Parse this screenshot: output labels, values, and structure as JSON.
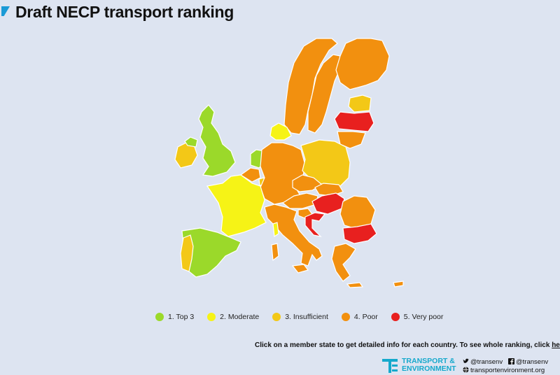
{
  "header": {
    "title": "Draft NECP transport ranking"
  },
  "colors": {
    "background": "#dde4f1",
    "top3": "#9bd92a",
    "moderate": "#f6f316",
    "insufficient": "#f3c817",
    "poor": "#f2900f",
    "very_poor": "#e8201f",
    "accent": "#1a9ad6"
  },
  "legend": {
    "items": [
      {
        "label": "1. Top 3",
        "category": "top3"
      },
      {
        "label": "2. Moderate",
        "category": "moderate"
      },
      {
        "label": "3. Insufficient",
        "category": "insufficient"
      },
      {
        "label": "4. Poor",
        "category": "poor"
      },
      {
        "label": "5. Very poor",
        "category": "very_poor"
      }
    ]
  },
  "map": {
    "regions": [
      {
        "name": "norway",
        "category": "poor"
      },
      {
        "name": "sweden",
        "category": "poor"
      },
      {
        "name": "finland",
        "category": "poor"
      },
      {
        "name": "estonia",
        "category": "insufficient"
      },
      {
        "name": "latvia",
        "category": "very_poor"
      },
      {
        "name": "lithuania",
        "category": "poor"
      },
      {
        "name": "ireland",
        "category": "insufficient"
      },
      {
        "name": "northern-ireland",
        "category": "top3"
      },
      {
        "name": "great-britain",
        "category": "top3"
      },
      {
        "name": "netherlands",
        "category": "top3"
      },
      {
        "name": "belgium",
        "category": "poor"
      },
      {
        "name": "denmark",
        "category": "moderate"
      },
      {
        "name": "germany",
        "category": "poor"
      },
      {
        "name": "poland",
        "category": "insufficient"
      },
      {
        "name": "czechia",
        "category": "poor"
      },
      {
        "name": "slovakia",
        "category": "poor"
      },
      {
        "name": "austria",
        "category": "poor"
      },
      {
        "name": "hungary",
        "category": "very_poor"
      },
      {
        "name": "slovenia",
        "category": "poor"
      },
      {
        "name": "croatia",
        "category": "very_poor"
      },
      {
        "name": "romania",
        "category": "poor"
      },
      {
        "name": "bulgaria",
        "category": "very_poor"
      },
      {
        "name": "greece",
        "category": "poor"
      },
      {
        "name": "cyprus",
        "category": "poor"
      },
      {
        "name": "italy",
        "category": "poor"
      },
      {
        "name": "sicily",
        "category": "poor"
      },
      {
        "name": "sardinia",
        "category": "poor"
      },
      {
        "name": "corsica",
        "category": "moderate"
      },
      {
        "name": "france",
        "category": "moderate"
      },
      {
        "name": "luxembourg",
        "category": "insufficient"
      },
      {
        "name": "spain",
        "category": "top3"
      },
      {
        "name": "portugal",
        "category": "insufficient"
      }
    ]
  },
  "cta": {
    "text": "Click on a member state to get detailed info for each country. To see whole ranking, click ",
    "link_label": "here"
  },
  "footer": {
    "org_line1": "TRANSPORT &",
    "org_line2": "ENVIRONMENT",
    "twitter": "@transenv",
    "facebook": "@transenv",
    "website": "transportenvironment.org"
  }
}
